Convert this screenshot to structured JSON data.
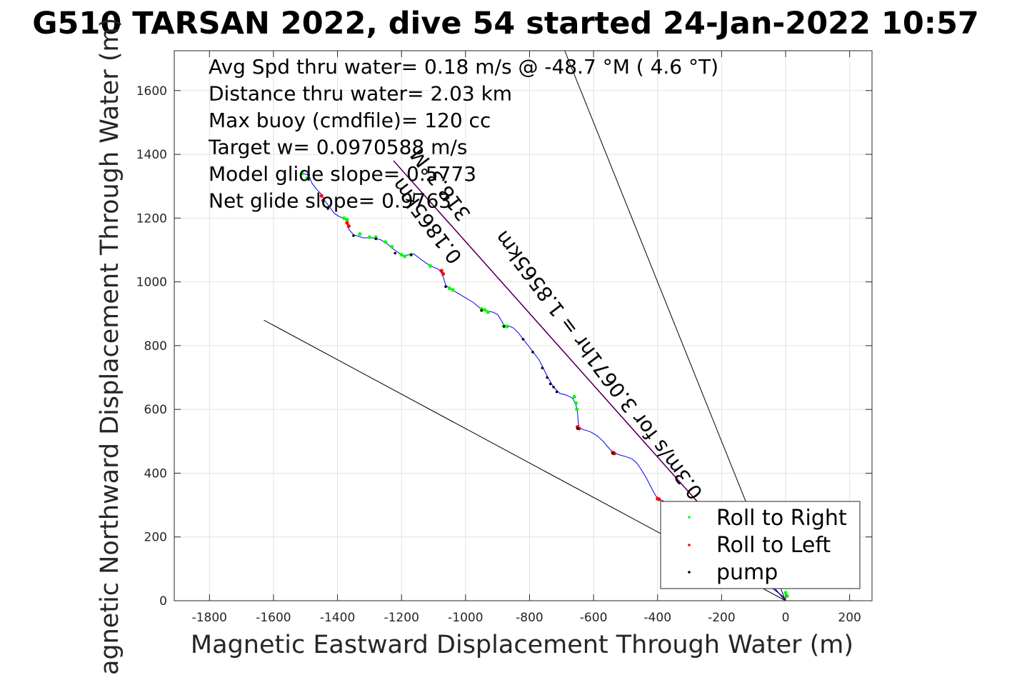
{
  "chart_data": {
    "type": "scatter",
    "title": "G510 TARSAN 2022, dive 54 started 24-Jan-2022 10:57",
    "xlabel": "Magnetic Eastward Displacement Through Water (m)",
    "ylabel": "Magnetic Northward Displacement Through Water (m)",
    "xlim": [
      -1910,
      270
    ],
    "ylim": [
      0,
      1725
    ],
    "xticks": [
      -1800,
      -1600,
      -1400,
      -1200,
      -1000,
      -800,
      -600,
      -400,
      -200,
      0,
      200
    ],
    "yticks": [
      0,
      200,
      400,
      600,
      800,
      1000,
      1200,
      1400,
      1600
    ],
    "grid": true,
    "legend_position": "bottom-right",
    "annotations": [
      "Avg Spd thru water=  0.18 m/s @ -48.7 °M (  4.6 °T)",
      "Distance thru water=  2.03 km",
      "Max buoy (cmdfile)= 120 cc",
      "Target w= 0.0970588 m/s",
      "Model glide slope= 0.5773",
      "Net glide slope= 0.9763"
    ],
    "rotated_labels": [
      "318.3°M",
      "0.1865km",
      "0.3m/s for 3.0671hr = 1.8565km"
    ],
    "series": [
      {
        "name": "Roll to Right",
        "color": "#00ff00",
        "points": [
          [
            -1510,
            1340
          ],
          [
            -1495,
            1325
          ],
          [
            -1380,
            1200
          ],
          [
            -1370,
            1195
          ],
          [
            -1330,
            1150
          ],
          [
            -1300,
            1140
          ],
          [
            -1280,
            1140
          ],
          [
            -1250,
            1125
          ],
          [
            -1230,
            1110
          ],
          [
            -1200,
            1085
          ],
          [
            -1190,
            1080
          ],
          [
            -1170,
            1085
          ],
          [
            -1110,
            1050
          ],
          [
            -1050,
            980
          ],
          [
            -1040,
            975
          ],
          [
            -950,
            915
          ],
          [
            -940,
            912
          ],
          [
            -930,
            905
          ],
          [
            -880,
            862
          ],
          [
            -870,
            860
          ],
          [
            -660,
            640
          ],
          [
            -655,
            620
          ],
          [
            -652,
            600
          ],
          [
            0,
            25
          ],
          [
            5,
            15
          ]
        ]
      },
      {
        "name": "Roll to Left",
        "color": "#ff0000",
        "points": [
          [
            -1450,
            1270
          ],
          [
            -1445,
            1255
          ],
          [
            -1370,
            1185
          ],
          [
            -1365,
            1175
          ],
          [
            -1075,
            1035
          ],
          [
            -1070,
            1025
          ],
          [
            -650,
            545
          ],
          [
            -645,
            540
          ],
          [
            -540,
            465
          ],
          [
            -535,
            462
          ],
          [
            -400,
            320
          ],
          [
            -395,
            318
          ]
        ]
      },
      {
        "name": "pump",
        "color": "#000000",
        "points": [
          [
            -1490,
            1335
          ],
          [
            -1430,
            1230
          ],
          [
            -1350,
            1145
          ],
          [
            -1280,
            1135
          ],
          [
            -1220,
            1090
          ],
          [
            -1170,
            1085
          ],
          [
            -1062,
            985
          ],
          [
            -950,
            910
          ],
          [
            -880,
            860
          ],
          [
            -820,
            820
          ],
          [
            -790,
            780
          ],
          [
            -760,
            730
          ],
          [
            -745,
            700
          ],
          [
            -735,
            680
          ],
          [
            -725,
            670
          ],
          [
            -715,
            655
          ],
          [
            -650,
            540
          ],
          [
            -540,
            462
          ]
        ]
      }
    ],
    "track": [
      [
        -1510,
        1340
      ],
      [
        -1490,
        1335
      ],
      [
        -1480,
        1310
      ],
      [
        -1465,
        1290
      ],
      [
        -1450,
        1275
      ],
      [
        -1440,
        1255
      ],
      [
        -1425,
        1235
      ],
      [
        -1410,
        1215
      ],
      [
        -1395,
        1205
      ],
      [
        -1378,
        1198
      ],
      [
        -1368,
        1185
      ],
      [
        -1365,
        1165
      ],
      [
        -1350,
        1148
      ],
      [
        -1320,
        1138
      ],
      [
        -1290,
        1138
      ],
      [
        -1265,
        1132
      ],
      [
        -1245,
        1120
      ],
      [
        -1228,
        1105
      ],
      [
        -1210,
        1092
      ],
      [
        -1195,
        1082
      ],
      [
        -1178,
        1085
      ],
      [
        -1162,
        1088
      ],
      [
        -1145,
        1075
      ],
      [
        -1125,
        1060
      ],
      [
        -1105,
        1048
      ],
      [
        -1085,
        1040
      ],
      [
        -1075,
        1028
      ],
      [
        -1068,
        1010
      ],
      [
        -1062,
        990
      ],
      [
        -1050,
        980
      ],
      [
        -1025,
        965
      ],
      [
        -1000,
        950
      ],
      [
        -975,
        935
      ],
      [
        -955,
        918
      ],
      [
        -935,
        910
      ],
      [
        -915,
        905
      ],
      [
        -900,
        898
      ],
      [
        -890,
        882
      ],
      [
        -880,
        865
      ],
      [
        -865,
        862
      ],
      [
        -850,
        855
      ],
      [
        -835,
        840
      ],
      [
        -820,
        820
      ],
      [
        -800,
        795
      ],
      [
        -785,
        775
      ],
      [
        -770,
        755
      ],
      [
        -755,
        725
      ],
      [
        -740,
        695
      ],
      [
        -725,
        670
      ],
      [
        -705,
        650
      ],
      [
        -685,
        645
      ],
      [
        -665,
        635
      ],
      [
        -655,
        615
      ],
      [
        -650,
        590
      ],
      [
        -648,
        560
      ],
      [
        -645,
        542
      ],
      [
        -630,
        536
      ],
      [
        -610,
        530
      ],
      [
        -590,
        518
      ],
      [
        -570,
        500
      ],
      [
        -550,
        476
      ],
      [
        -538,
        464
      ],
      [
        -520,
        458
      ],
      [
        -500,
        452
      ],
      [
        -480,
        445
      ],
      [
        -465,
        432
      ],
      [
        -450,
        410
      ],
      [
        -435,
        385
      ],
      [
        -420,
        355
      ],
      [
        -405,
        328
      ],
      [
        -395,
        318
      ],
      [
        -350,
        300
      ],
      [
        -300,
        270
      ],
      [
        -250,
        230
      ],
      [
        -200,
        190
      ],
      [
        -150,
        140
      ],
      [
        -100,
        90
      ],
      [
        -50,
        45
      ],
      [
        -10,
        15
      ],
      [
        0,
        5
      ]
    ],
    "heading_line": [
      [
        -1225,
        1380
      ],
      [
        0,
        0
      ]
    ],
    "current_line": [
      [
        -690,
        1725
      ],
      [
        0,
        0
      ]
    ],
    "slope_line": [
      [
        -1630,
        880
      ],
      [
        0,
        0
      ]
    ]
  }
}
